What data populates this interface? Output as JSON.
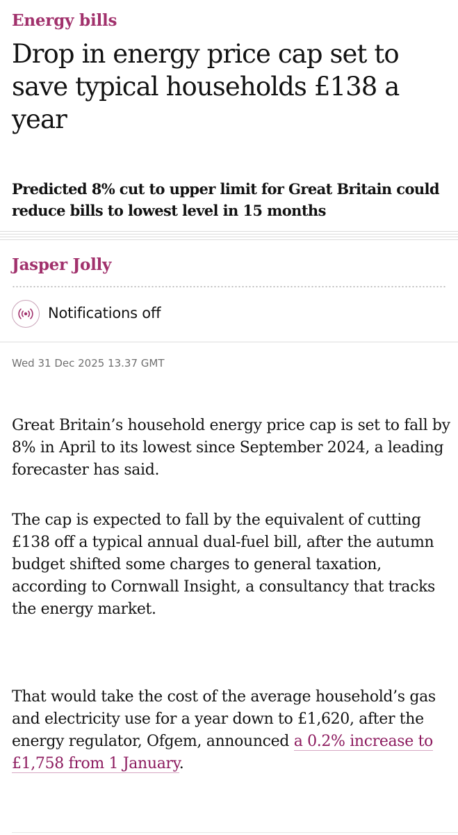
{
  "section": "Energy bills",
  "headline": "Drop in energy price cap set to save typical households £138 a year",
  "standfirst": "Predicted 8% cut to upper limit for Great Britain could reduce bills to lowest level in 15 months",
  "author": "Jasper Jolly",
  "notifications": {
    "label": "Notifications off",
    "icon": "broadcast-icon"
  },
  "published": "Wed 31 Dec 2025 13.37 GMT",
  "body": {
    "p1": "Great Britain’s household energy price cap is set to fall by 8% in April to its lowest since September 2024, a leading forecaster has said.",
    "p2": "The cap is expected to fall by the equivalent of cutting £138 off a typical annual dual-fuel bill, after the autumn budget shifted some charges to general taxation, according to Cornwall Insight, a consultancy that tracks the energy market.",
    "p3_before": "That would take the cost of the average household’s gas and electricity use for a year down to £1,620, after the energy regulator, Ofgem, announced ",
    "p3_link": "a 0.2% increase to £1,758 from 1 January",
    "p3_after": "."
  },
  "colors": {
    "accent": "#a1316c",
    "link": "#8c1a5e",
    "text": "#121212",
    "muted": "#707070"
  }
}
